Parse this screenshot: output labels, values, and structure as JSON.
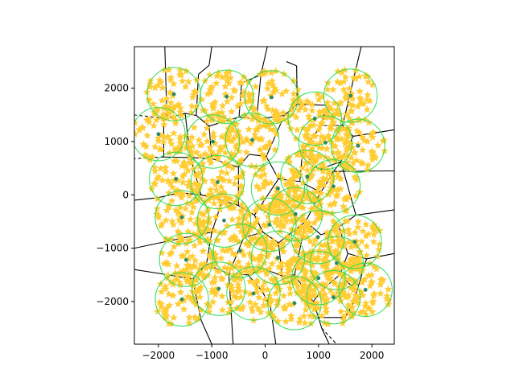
{
  "chart_data": {
    "type": "scatter",
    "title": "",
    "xlabel": "",
    "ylabel": "",
    "xlim": [
      -2450,
      2420
    ],
    "ylim": [
      -2800,
      2780
    ],
    "grid": false,
    "legend": "none",
    "x_ticks": [
      {
        "value": -2000,
        "label": "−2000"
      },
      {
        "value": -1000,
        "label": "−1000"
      },
      {
        "value": 0,
        "label": "0"
      },
      {
        "value": 1000,
        "label": "1000"
      },
      {
        "value": 2000,
        "label": "2000"
      }
    ],
    "y_ticks": [
      {
        "value": -2000,
        "label": "−2000"
      },
      {
        "value": -1000,
        "label": "−1000"
      },
      {
        "value": 0,
        "label": "0"
      },
      {
        "value": 1000,
        "label": "1000"
      },
      {
        "value": 2000,
        "label": "2000"
      }
    ],
    "colors": {
      "circle": "#33dd55",
      "center": "#2a8a6a",
      "voronoi": "#000000",
      "star": "#ffcc33"
    },
    "circle_radius": 500,
    "centers": [
      [
        -1710,
        1890
      ],
      [
        -720,
        1840
      ],
      [
        120,
        1830
      ],
      [
        930,
        1430
      ],
      [
        1600,
        1860
      ],
      [
        -2000,
        1140
      ],
      [
        -980,
        1000
      ],
      [
        -240,
        1030
      ],
      [
        1130,
        980
      ],
      [
        1740,
        920
      ],
      [
        -1670,
        300
      ],
      [
        -890,
        240
      ],
      [
        240,
        120
      ],
      [
        790,
        340
      ],
      [
        1280,
        160
      ],
      [
        -1560,
        -420
      ],
      [
        -770,
        -480
      ],
      [
        80,
        -560
      ],
      [
        570,
        -360
      ],
      [
        1680,
        -880
      ],
      [
        -1480,
        -1220
      ],
      [
        -470,
        -1050
      ],
      [
        240,
        -1180
      ],
      [
        990,
        -790
      ],
      [
        1340,
        -1280
      ],
      [
        -1560,
        -1960
      ],
      [
        -870,
        -1760
      ],
      [
        -220,
        -1850
      ],
      [
        550,
        -2030
      ],
      [
        1000,
        -1560
      ],
      [
        1880,
        -1780
      ],
      [
        1280,
        -1920
      ]
    ],
    "voronoi_edges": [
      [
        [
          -1500,
          1530
        ],
        [
          -1290,
          1490
        ]
      ],
      [
        [
          -1290,
          1490
        ],
        [
          -1050,
          1290
        ]
      ],
      [
        [
          -1290,
          1490
        ],
        [
          -1250,
          2260
        ]
      ],
      [
        [
          -1250,
          2260
        ],
        [
          -1050,
          2430
        ]
      ],
      [
        [
          -1050,
          2430
        ],
        [
          -1000,
          2780
        ]
      ],
      [
        [
          -1500,
          1530
        ],
        [
          -1840,
          1430
        ]
      ],
      [
        [
          -1840,
          1430
        ],
        [
          -1880,
          2780
        ]
      ],
      [
        [
          -1500,
          1530
        ],
        [
          -1400,
          700
        ]
      ],
      [
        [
          -1400,
          700
        ],
        [
          -1900,
          710
        ]
      ],
      [
        [
          -1900,
          710
        ],
        [
          -1900,
          1420
        ]
      ],
      [
        [
          -1900,
          1420
        ],
        [
          -1840,
          1430
        ]
      ],
      [
        [
          -1050,
          1290
        ],
        [
          -490,
          1460
        ]
      ],
      [
        [
          -490,
          1460
        ],
        [
          -160,
          1420
        ]
      ],
      [
        [
          -160,
          1420
        ],
        [
          360,
          1490
        ]
      ],
      [
        [
          360,
          1490
        ],
        [
          600,
          1700
        ]
      ],
      [
        [
          600,
          1700
        ],
        [
          590,
          2420
        ]
      ],
      [
        [
          590,
          2420
        ],
        [
          400,
          2500
        ]
      ],
      [
        [
          -490,
          1460
        ],
        [
          -440,
          2100
        ]
      ],
      [
        [
          -440,
          2100
        ],
        [
          -80,
          2250
        ]
      ],
      [
        [
          -80,
          2250
        ],
        [
          40,
          2780
        ]
      ],
      [
        [
          -160,
          1420
        ],
        [
          -80,
          2250
        ]
      ],
      [
        [
          -1050,
          1290
        ],
        [
          -1000,
          680
        ]
      ],
      [
        [
          -1000,
          680
        ],
        [
          -1400,
          700
        ]
      ],
      [
        [
          -1000,
          680
        ],
        [
          -500,
          520
        ]
      ],
      [
        [
          -500,
          520
        ],
        [
          -300,
          760
        ]
      ],
      [
        [
          -300,
          760
        ],
        [
          20,
          720
        ]
      ],
      [
        [
          20,
          720
        ],
        [
          360,
          1490
        ]
      ],
      [
        [
          20,
          720
        ],
        [
          250,
          300
        ]
      ],
      [
        [
          250,
          300
        ],
        [
          650,
          250
        ]
      ],
      [
        [
          650,
          250
        ],
        [
          700,
          820
        ]
      ],
      [
        [
          700,
          820
        ],
        [
          1050,
          1300
        ]
      ],
      [
        [
          1050,
          1300
        ],
        [
          1450,
          1300
        ]
      ],
      [
        [
          1450,
          1300
        ],
        [
          1800,
          2780
        ]
      ],
      [
        [
          1050,
          1300
        ],
        [
          1150,
          1680
        ]
      ],
      [
        [
          1150,
          1680
        ],
        [
          600,
          1700
        ]
      ],
      [
        [
          1450,
          1300
        ],
        [
          1650,
          1100
        ]
      ],
      [
        [
          1650,
          1100
        ],
        [
          2420,
          1220
        ]
      ],
      [
        [
          1650,
          1100
        ],
        [
          1420,
          620
        ]
      ],
      [
        [
          1420,
          620
        ],
        [
          1000,
          480
        ]
      ],
      [
        [
          1000,
          480
        ],
        [
          700,
          820
        ]
      ],
      [
        [
          1420,
          620
        ],
        [
          1280,
          440
        ]
      ],
      [
        [
          1280,
          440
        ],
        [
          2420,
          450
        ]
      ],
      [
        [
          1280,
          440
        ],
        [
          1000,
          480
        ]
      ],
      [
        [
          1280,
          440
        ],
        [
          1130,
          180
        ]
      ],
      [
        [
          1130,
          180
        ],
        [
          1040,
          50
        ]
      ],
      [
        [
          1040,
          50
        ],
        [
          650,
          250
        ]
      ],
      [
        [
          1040,
          50
        ],
        [
          760,
          -500
        ]
      ],
      [
        [
          760,
          -500
        ],
        [
          1050,
          -750
        ]
      ],
      [
        [
          1050,
          -750
        ],
        [
          1380,
          -600
        ]
      ],
      [
        [
          1380,
          -600
        ],
        [
          1700,
          -380
        ]
      ],
      [
        [
          1700,
          -380
        ],
        [
          2420,
          -280
        ]
      ],
      [
        [
          1380,
          -600
        ],
        [
          1550,
          -1100
        ]
      ],
      [
        [
          1550,
          -1100
        ],
        [
          1900,
          -1200
        ]
      ],
      [
        [
          1900,
          -1200
        ],
        [
          2420,
          -1100
        ]
      ],
      [
        [
          1550,
          -1100
        ],
        [
          1400,
          -1500
        ]
      ],
      [
        [
          1400,
          -1500
        ],
        [
          1720,
          -1800
        ]
      ],
      [
        [
          1720,
          -1800
        ],
        [
          1660,
          -2020
        ]
      ],
      [
        [
          1660,
          -2020
        ],
        [
          1500,
          -2300
        ]
      ],
      [
        [
          1400,
          -1500
        ],
        [
          1100,
          -1750
        ]
      ],
      [
        [
          1100,
          -1750
        ],
        [
          900,
          -2000
        ]
      ],
      [
        [
          900,
          -2000
        ],
        [
          1000,
          -2300
        ]
      ],
      [
        [
          1000,
          -2300
        ],
        [
          1500,
          -2300
        ]
      ],
      [
        [
          1000,
          -2300
        ],
        [
          1060,
          -2500
        ]
      ],
      [
        [
          1060,
          -2500
        ],
        [
          1200,
          -2800
        ]
      ],
      [
        [
          900,
          -2000
        ],
        [
          550,
          -1500
        ]
      ],
      [
        [
          550,
          -1500
        ],
        [
          320,
          -1520
        ]
      ],
      [
        [
          320,
          -1520
        ],
        [
          -40,
          -1380
        ]
      ],
      [
        [
          -40,
          -1380
        ],
        [
          -320,
          -1500
        ]
      ],
      [
        [
          -320,
          -1500
        ],
        [
          -680,
          -1480
        ]
      ],
      [
        [
          -680,
          -1480
        ],
        [
          -1100,
          -1300
        ]
      ],
      [
        [
          -1100,
          -1300
        ],
        [
          -1360,
          -1580
        ]
      ],
      [
        [
          -1360,
          -1580
        ],
        [
          -1880,
          -1490
        ]
      ],
      [
        [
          -1880,
          -1490
        ],
        [
          -2450,
          -1400
        ]
      ],
      [
        [
          -1360,
          -1580
        ],
        [
          -1200,
          -2350
        ]
      ],
      [
        [
          -1200,
          -2350
        ],
        [
          -1000,
          -2800
        ]
      ],
      [
        [
          -680,
          -1480
        ],
        [
          -600,
          -2800
        ]
      ],
      [
        [
          -320,
          -1500
        ],
        [
          -60,
          -1800
        ]
      ],
      [
        [
          -60,
          -1800
        ],
        [
          100,
          -2100
        ]
      ],
      [
        [
          100,
          -2100
        ],
        [
          200,
          -2800
        ]
      ],
      [
        [
          550,
          -1500
        ],
        [
          760,
          -500
        ]
      ],
      [
        [
          320,
          -1520
        ],
        [
          250,
          -900
        ]
      ],
      [
        [
          250,
          -900
        ],
        [
          -40,
          -700
        ]
      ],
      [
        [
          -40,
          -700
        ],
        [
          -200,
          -380
        ]
      ],
      [
        [
          -200,
          -380
        ],
        [
          -500,
          -200
        ]
      ],
      [
        [
          -500,
          -200
        ],
        [
          -800,
          -100
        ]
      ],
      [
        [
          -800,
          -100
        ],
        [
          -1200,
          0
        ]
      ],
      [
        [
          -1200,
          0
        ],
        [
          -1400,
          700
        ]
      ],
      [
        [
          -1200,
          0
        ],
        [
          -1600,
          40
        ]
      ],
      [
        [
          -1600,
          40
        ],
        [
          -2000,
          -50
        ]
      ],
      [
        [
          -2000,
          -50
        ],
        [
          -2450,
          -100
        ]
      ],
      [
        [
          -800,
          -100
        ],
        [
          -1000,
          -700
        ]
      ],
      [
        [
          -1000,
          -700
        ],
        [
          -1100,
          -1300
        ]
      ],
      [
        [
          -1000,
          -700
        ],
        [
          -1500,
          -800
        ]
      ],
      [
        [
          -1500,
          -800
        ],
        [
          -2450,
          -1000
        ]
      ],
      [
        [
          -500,
          -200
        ],
        [
          -500,
          520
        ]
      ],
      [
        [
          -200,
          -380
        ],
        [
          250,
          300
        ]
      ],
      [
        [
          -40,
          -700
        ],
        [
          -400,
          -800
        ]
      ],
      [
        [
          -400,
          -800
        ],
        [
          -680,
          -1480
        ]
      ],
      [
        [
          250,
          -900
        ],
        [
          760,
          -500
        ]
      ],
      [
        [
          1700,
          -380
        ],
        [
          1420,
          620
        ]
      ],
      [
        [
          1900,
          -1200
        ],
        [
          1720,
          -1800
        ]
      ],
      [
        [
          1500,
          -2300
        ],
        [
          1660,
          -2020
        ]
      ]
    ],
    "voronoi_dashed": [
      [
        [
          -1880,
          1430
        ],
        [
          -2450,
          1500
        ]
      ],
      [
        [
          -1900,
          710
        ],
        [
          -2450,
          680
        ]
      ],
      [
        [
          1060,
          -2500
        ],
        [
          1340,
          -2800
        ]
      ]
    ]
  }
}
